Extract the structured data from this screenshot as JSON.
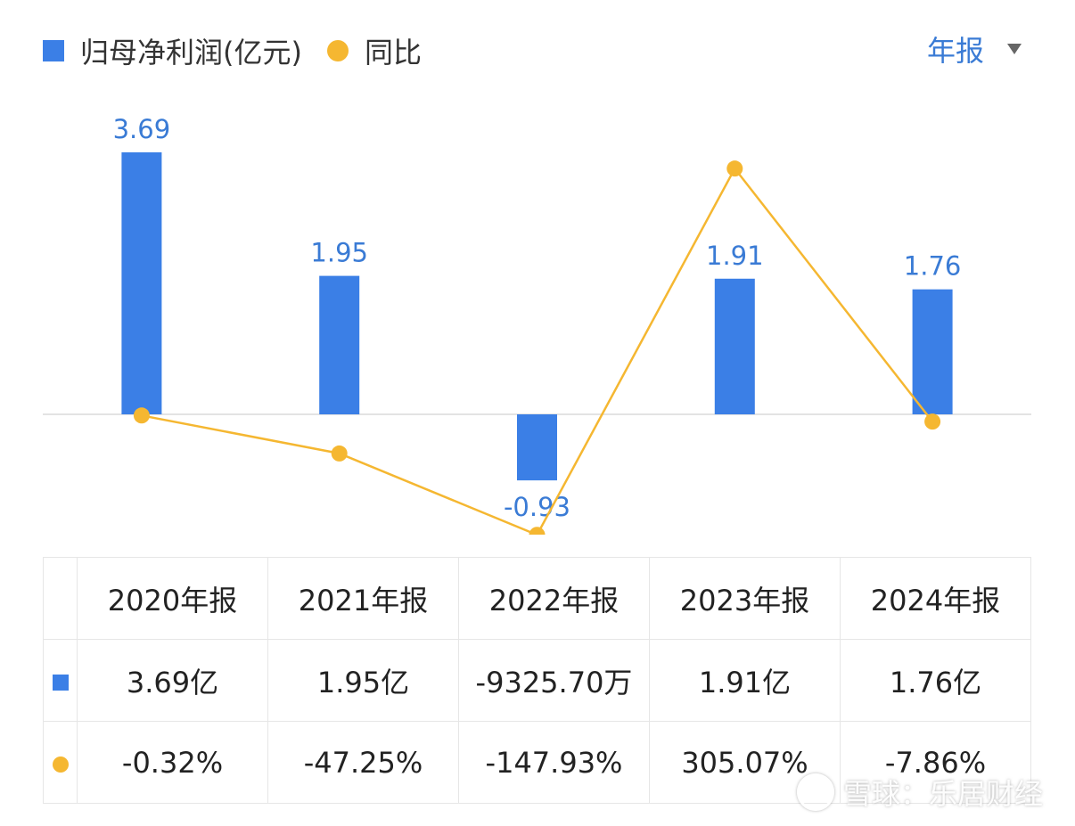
{
  "legend": {
    "profit_label": "归母净利润(亿元)",
    "yoy_label": "同比"
  },
  "period_selector": {
    "label": "年报"
  },
  "colors": {
    "bar": "#3b7fe6",
    "line": "#f5b731",
    "positive": "#e04545",
    "negative": "#2aa06c"
  },
  "chart_data": {
    "type": "bar",
    "categories": [
      "2020年报",
      "2021年报",
      "2022年报",
      "2023年报",
      "2024年报"
    ],
    "series": [
      {
        "name": "归母净利润(亿元)",
        "type": "bar",
        "values": [
          3.69,
          1.95,
          -0.93,
          1.91,
          1.76
        ],
        "labels": [
          "3.69",
          "1.95",
          "-0.93",
          "1.91",
          "1.76"
        ]
      },
      {
        "name": "同比",
        "type": "line",
        "values": [
          -0.32,
          -47.25,
          -147.93,
          305.07,
          -7.86
        ]
      }
    ]
  },
  "table": {
    "headers": [
      "2020年报",
      "2021年报",
      "2022年报",
      "2023年报",
      "2024年报"
    ],
    "profit_row": [
      "3.69亿",
      "1.95亿",
      "-9325.70万",
      "1.91亿",
      "1.76亿"
    ],
    "yoy_row": [
      "-0.32%",
      "-47.25%",
      "-147.93%",
      "305.07%",
      "-7.86%"
    ]
  },
  "watermark": "雪球：乐居财经"
}
